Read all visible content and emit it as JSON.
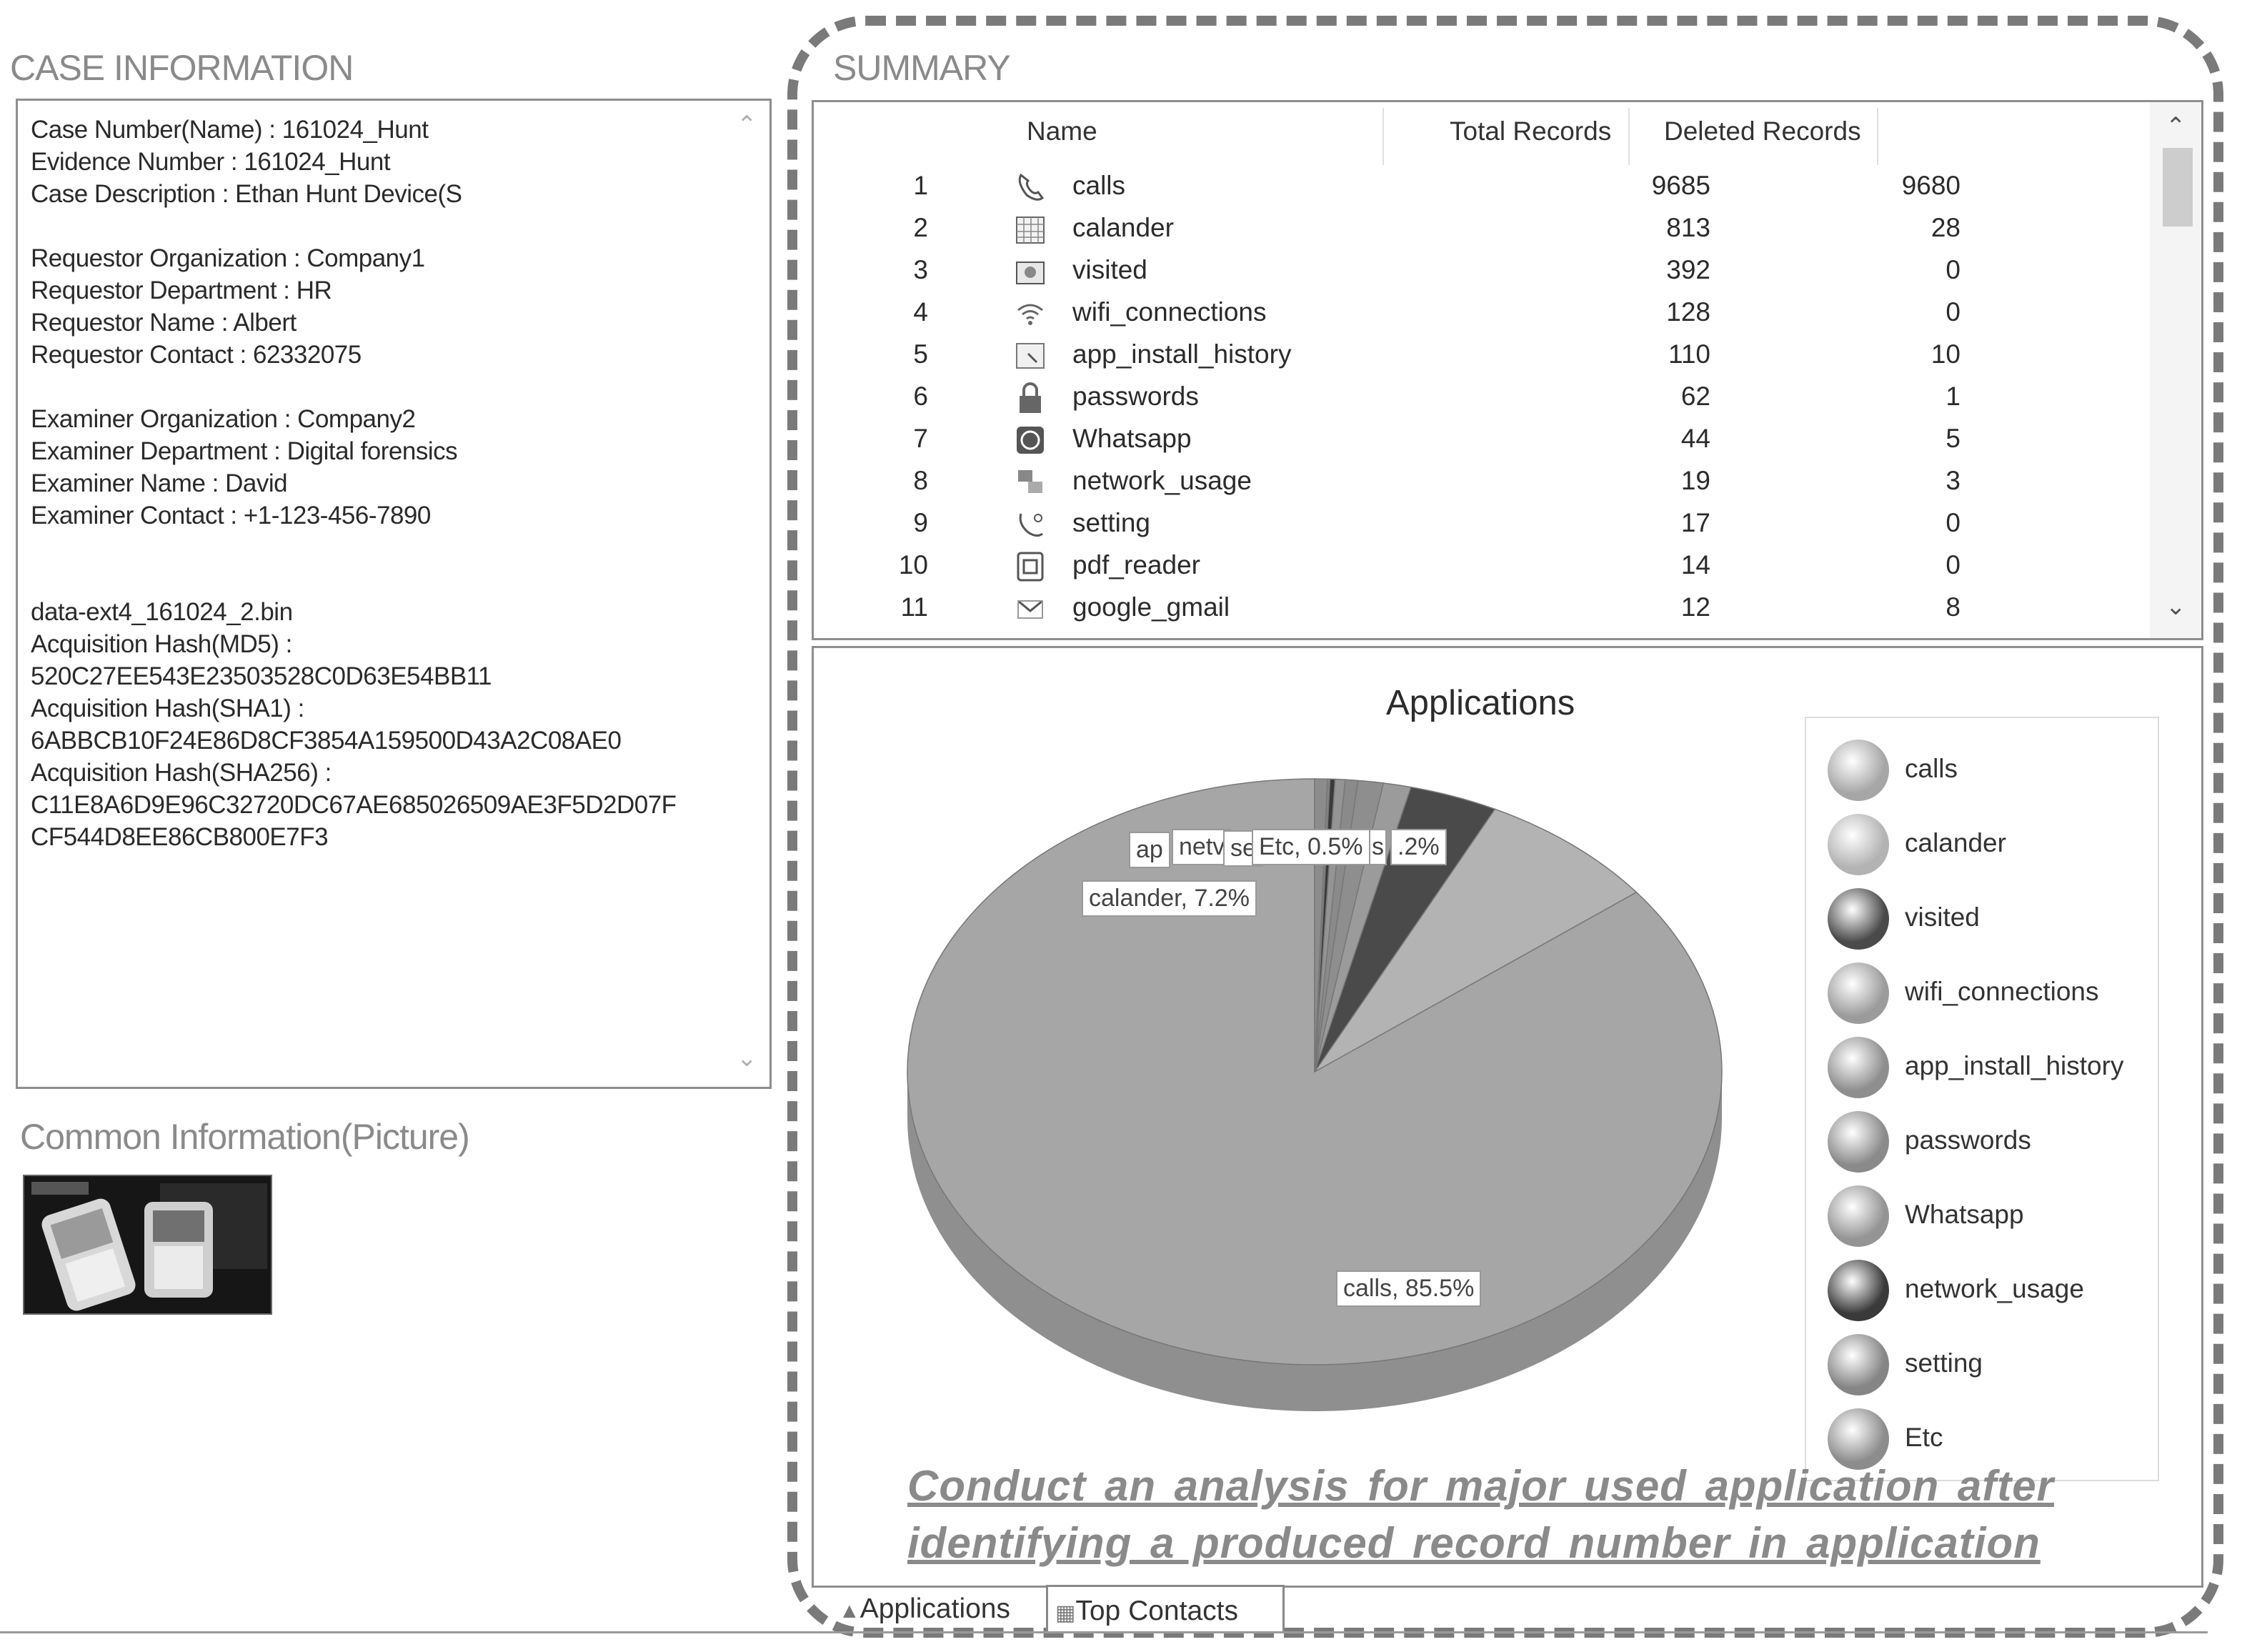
{
  "case": {
    "title": "CASE INFORMATION",
    "lines": [
      "Case Number(Name) : 161024_Hunt",
      "Evidence Number : 161024_Hunt",
      "Case Description : Ethan Hunt Device(S",
      "",
      "Requestor Organization : Company1",
      "Requestor Department : HR",
      "Requestor Name : Albert",
      "Requestor Contact : 62332075",
      "",
      "Examiner Organization : Company2",
      "Examiner Department : Digital forensics",
      "Examiner Name : David",
      "Examiner Contact : +1-123-456-7890",
      "",
      "",
      "data-ext4_161024_2.bin",
      "Acquisition Hash(MD5) :",
      "520C27EE543E23503528C0D63E54BB11",
      "Acquisition Hash(SHA1) :",
      "6ABBCB10F24E86D8CF3854A159500D43A2C08AE0",
      "Acquisition Hash(SHA256) :",
      "C11E8A6D9E96C32720DC67AE685026509AE3F5D2D07F",
      "CF544D8EE86CB800E7F3"
    ]
  },
  "common": {
    "title": "Common Information(Picture)"
  },
  "summary": {
    "title": "SUMMARY",
    "columns": {
      "name": "Name",
      "total": "Total Records",
      "deleted": "Deleted Records"
    },
    "rows": [
      {
        "idx": "1",
        "icon": "phone-icon",
        "name": "calls",
        "total": "9685",
        "deleted": "9680"
      },
      {
        "idx": "2",
        "icon": "calendar-icon",
        "name": "calander",
        "total": "813",
        "deleted": "28"
      },
      {
        "idx": "3",
        "icon": "browser-icon",
        "name": "visited",
        "total": "392",
        "deleted": "0"
      },
      {
        "idx": "4",
        "icon": "wifi-icon",
        "name": "wifi_connections",
        "total": "128",
        "deleted": "0"
      },
      {
        "idx": "5",
        "icon": "install-icon",
        "name": "app_install_history",
        "total": "110",
        "deleted": "10"
      },
      {
        "idx": "6",
        "icon": "lock-icon",
        "name": "passwords",
        "total": "62",
        "deleted": "1"
      },
      {
        "idx": "7",
        "icon": "whatsapp-icon",
        "name": "Whatsapp",
        "total": "44",
        "deleted": "5"
      },
      {
        "idx": "8",
        "icon": "network-icon",
        "name": "network_usage",
        "total": "19",
        "deleted": "3"
      },
      {
        "idx": "9",
        "icon": "settings-icon",
        "name": "setting",
        "total": "17",
        "deleted": "0"
      },
      {
        "idx": "10",
        "icon": "pdf-icon",
        "name": "pdf_reader",
        "total": "14",
        "deleted": "0"
      },
      {
        "idx": "11",
        "icon": "mail-icon",
        "name": "google_gmail",
        "total": "12",
        "deleted": "8"
      }
    ]
  },
  "chart_data": {
    "type": "pie",
    "title": "Applications",
    "legend_position": "right",
    "slices": [
      {
        "label": "calls",
        "value": 85.5,
        "color": "#a6a6a6"
      },
      {
        "label": "calander",
        "value": 7.2,
        "color": "#b3b3b3"
      },
      {
        "label": "visited",
        "value": 3.5,
        "color": "#4a4a4a"
      },
      {
        "label": "wifi_connections",
        "value": 1.1,
        "color": "#9b9b9b"
      },
      {
        "label": "app_install_history",
        "value": 1.0,
        "color": "#8e8e8e"
      },
      {
        "label": "passwords",
        "value": 0.5,
        "color": "#8a8a8a"
      },
      {
        "label": "Whatsapp",
        "value": 0.4,
        "color": "#949494"
      },
      {
        "label": "network_usage",
        "value": 0.2,
        "color": "#3a3a3a"
      },
      {
        "label": "setting",
        "value": 0.1,
        "color": "#858585"
      },
      {
        "label": "Etc",
        "value": 0.5,
        "color": "#8c8c8c"
      }
    ],
    "callouts": {
      "calls": "calls, 85.5%",
      "calander": "calander, 7.2%",
      "etc": "Etc, 0.5%",
      "app_frag": "ap",
      "net_frag": "netv",
      "set_frag": "se",
      "pct_frag": ".2%",
      "s_frag": "s"
    }
  },
  "caption": {
    "line1": "Conduct  an  analysis  for  major  used  application  after",
    "line2": "identifying  a  produced  record  number  in  application"
  },
  "tabs": {
    "applications": "Applications",
    "top_contacts": "Top Contacts"
  }
}
